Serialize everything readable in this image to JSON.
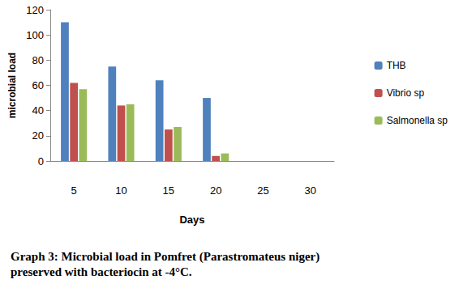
{
  "chart_data": {
    "type": "bar",
    "title": "Graph 3: Microbial load in Pomfret (Parastromateus niger) preserved with bacteriocin at -4°C.",
    "x_label": "Days",
    "y_label": "microbial load",
    "categories": [
      "5",
      "10",
      "15",
      "20",
      "25",
      "30"
    ],
    "series": [
      {
        "name": "THB",
        "color": "#4f81bd",
        "values": [
          110,
          75,
          64,
          50,
          0,
          0
        ]
      },
      {
        "name": "Vibrio sp",
        "color": "#c0504d",
        "values": [
          62,
          44,
          25,
          4,
          0,
          0
        ]
      },
      {
        "name": "Salmonella sp",
        "color": "#9bbb59",
        "values": [
          57,
          45,
          27,
          6,
          0,
          0
        ]
      }
    ],
    "ylim": [
      0,
      120
    ],
    "yticks": [
      0,
      20,
      40,
      60,
      80,
      100,
      120
    ],
    "grid": false,
    "legend": "right"
  }
}
